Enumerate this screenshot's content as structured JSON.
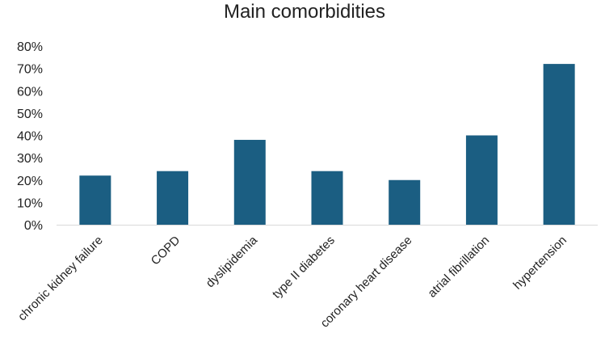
{
  "chart_data": {
    "type": "bar",
    "title": "Main comorbidities",
    "xlabel": "",
    "ylabel": "",
    "categories": [
      "chronic kidney failure",
      "COPD",
      "dyslipidemia",
      "type II diabetes",
      "coronary heart disease",
      "atrial fibrillation",
      "hypertension"
    ],
    "values": [
      0.22,
      0.24,
      0.38,
      0.24,
      0.2,
      0.4,
      0.72
    ],
    "ylim": [
      0,
      0.8
    ],
    "yticks": [
      0,
      0.1,
      0.2,
      0.3,
      0.4,
      0.5,
      0.6,
      0.7,
      0.8
    ],
    "ytick_labels": [
      "0%",
      "10%",
      "20%",
      "30%",
      "40%",
      "50%",
      "60%",
      "70%",
      "80%"
    ],
    "grid": false,
    "legend": "none",
    "bar_color": "#1b5e82"
  }
}
